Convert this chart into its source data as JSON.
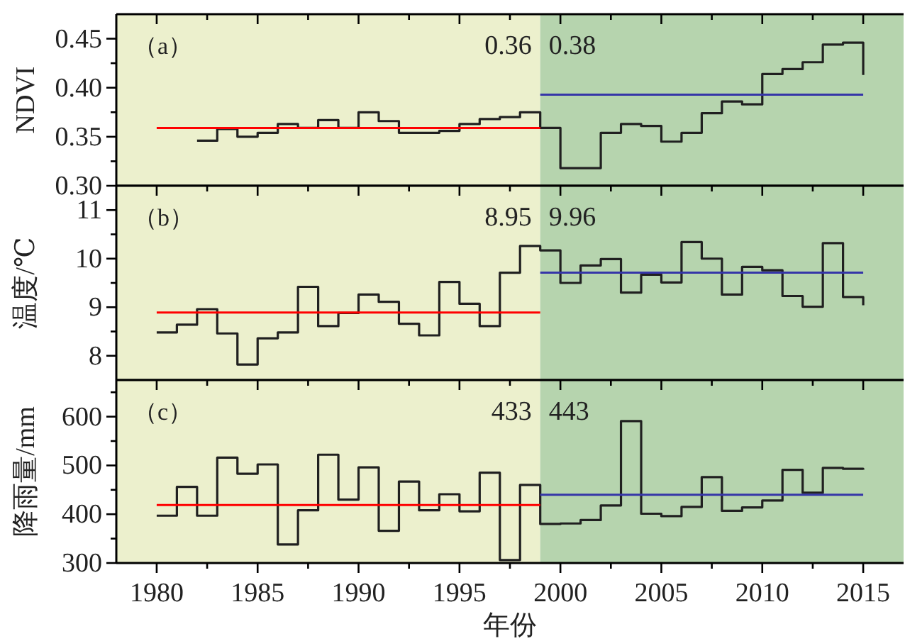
{
  "chart_data": [
    {
      "type": "step",
      "title": "（a）",
      "ylabel": "NDVI",
      "tick_labels": "y",
      "x": [
        1982,
        1983,
        1984,
        1985,
        1986,
        1987,
        1988,
        1989,
        1990,
        1991,
        1992,
        1993,
        1994,
        1995,
        1996,
        1997,
        1998,
        1999,
        2000,
        2001,
        2002,
        2003,
        2004,
        2005,
        2006,
        2007,
        2008,
        2009,
        2010,
        2011,
        2012,
        2013,
        2014,
        2015
      ],
      "series": [
        {
          "color": "#202020",
          "values": [
            0.346,
            0.358,
            0.35,
            0.354,
            0.363,
            0.359,
            0.367,
            0.359,
            0.375,
            0.366,
            0.354,
            0.354,
            0.356,
            0.363,
            0.368,
            0.37,
            0.375,
            0.359,
            0.318,
            0.318,
            0.354,
            0.363,
            0.361,
            0.345,
            0.354,
            0.374,
            0.386,
            0.383,
            0.414,
            0.419,
            0.426,
            0.444,
            0.446,
            0.413
          ]
        },
        {
          "type": "line",
          "color": "#ff0000",
          "x": [
            1980,
            1999
          ],
          "values": [
            0.359,
            0.359
          ]
        },
        {
          "type": "line",
          "color": "#3535a8",
          "x": [
            1999,
            2015
          ],
          "values": [
            0.393,
            0.393
          ]
        }
      ],
      "bands": [
        {
          "axis": "x",
          "from": 1978,
          "to": 1999,
          "color": "#ecf0cd"
        },
        {
          "axis": "x",
          "from": 1999,
          "to": 2017,
          "color": "#b6d4ae"
        }
      ],
      "annotations": [
        "0.36",
        "0.38"
      ],
      "xlim": [
        1978,
        2017
      ],
      "xticks": [
        1980,
        {
          "value": 1982.5,
          "label": null
        },
        1985,
        {
          "value": 1987.5,
          "label": null
        },
        1990,
        {
          "value": 1992.5,
          "label": null
        },
        1995,
        {
          "value": 1997.5,
          "label": null
        },
        2000,
        {
          "value": 2002.5,
          "label": null
        },
        2005,
        {
          "value": 2007.5,
          "label": null
        },
        2010,
        {
          "value": 2012.5,
          "label": null
        },
        2015
      ],
      "ylim": [
        0.3,
        0.475
      ],
      "yticks": [
        {
          "value": 0.3,
          "label": "0.30"
        },
        {
          "value": 0.325,
          "label": null
        },
        0.35,
        {
          "value": 0.375,
          "label": null
        },
        {
          "value": 0.4,
          "label": "0.40"
        },
        {
          "value": 0.425,
          "label": null
        },
        0.45
      ]
    },
    {
      "type": "step",
      "title": "（b）",
      "ylabel": "温度/℃",
      "tick_labels": "y",
      "x": [
        1980,
        1981,
        1982,
        1983,
        1984,
        1985,
        1986,
        1987,
        1988,
        1989,
        1990,
        1991,
        1992,
        1993,
        1994,
        1995,
        1996,
        1997,
        1998,
        1999,
        2000,
        2001,
        2002,
        2003,
        2004,
        2005,
        2006,
        2007,
        2008,
        2009,
        2010,
        2011,
        2012,
        2013,
        2014,
        2015
      ],
      "series": [
        {
          "color": "#202020",
          "values": [
            8.48,
            8.64,
            8.96,
            8.46,
            7.82,
            8.36,
            8.48,
            9.42,
            8.61,
            8.88,
            9.26,
            9.11,
            8.66,
            8.42,
            9.52,
            9.07,
            8.61,
            9.71,
            10.26,
            10.17,
            9.5,
            9.86,
            9.99,
            9.3,
            9.67,
            9.51,
            10.34,
            10.0,
            9.26,
            9.83,
            9.76,
            9.23,
            9.01,
            10.32,
            9.21,
            9.04
          ]
        },
        {
          "type": "line",
          "color": "#ff0000",
          "x": [
            1980,
            1999
          ],
          "values": [
            8.89,
            8.89
          ]
        },
        {
          "type": "line",
          "color": "#3535a8",
          "x": [
            1999,
            2015
          ],
          "values": [
            9.71,
            9.71
          ]
        }
      ],
      "bands": [
        {
          "axis": "x",
          "from": 1978,
          "to": 1999,
          "color": "#ecf0cd"
        },
        {
          "axis": "x",
          "from": 1999,
          "to": 2017,
          "color": "#b6d4ae"
        }
      ],
      "annotations": [
        "8.95",
        "9.96"
      ],
      "xlim": [
        1978,
        2017
      ],
      "xticks": [
        1980,
        {
          "value": 1982.5,
          "label": null
        },
        1985,
        {
          "value": 1987.5,
          "label": null
        },
        1990,
        {
          "value": 1992.5,
          "label": null
        },
        1995,
        {
          "value": 1997.5,
          "label": null
        },
        2000,
        {
          "value": 2002.5,
          "label": null
        },
        2005,
        {
          "value": 2007.5,
          "label": null
        },
        2010,
        {
          "value": 2012.5,
          "label": null
        },
        2015
      ],
      "ylim": [
        7.5,
        11.5
      ],
      "yticks": [
        8,
        {
          "value": 8.5,
          "label": null
        },
        9,
        {
          "value": 9.5,
          "label": null
        },
        10,
        {
          "value": 10.5,
          "label": null
        },
        11
      ]
    },
    {
      "type": "step",
      "title": "（c）",
      "ylabel": "降雨量/mm",
      "xlabel": "年份",
      "x": [
        1980,
        1981,
        1982,
        1983,
        1984,
        1985,
        1986,
        1987,
        1988,
        1989,
        1990,
        1991,
        1992,
        1993,
        1994,
        1995,
        1996,
        1997,
        1998,
        1999,
        2000,
        2001,
        2002,
        2003,
        2004,
        2005,
        2006,
        2007,
        2008,
        2009,
        2010,
        2011,
        2012,
        2013,
        2014,
        2015
      ],
      "series": [
        {
          "color": "#202020",
          "values": [
            397,
            456,
            397,
            516,
            483,
            502,
            338,
            408,
            522,
            430,
            496,
            366,
            467,
            408,
            441,
            406,
            485,
            306,
            460,
            380,
            381,
            388,
            418,
            591,
            401,
            396,
            415,
            476,
            407,
            414,
            428,
            491,
            444,
            495,
            493,
            491
          ]
        },
        {
          "type": "line",
          "color": "#ff0000",
          "x": [
            1980,
            1999
          ],
          "values": [
            419,
            419
          ]
        },
        {
          "type": "line",
          "color": "#3535a8",
          "x": [
            1999,
            2015
          ],
          "values": [
            440,
            440
          ]
        }
      ],
      "bands": [
        {
          "axis": "x",
          "from": 1978,
          "to": 1999,
          "color": "#ecf0cd"
        },
        {
          "axis": "x",
          "from": 1999,
          "to": 2017,
          "color": "#b6d4ae"
        }
      ],
      "annotations": [
        "433",
        "443"
      ],
      "xlim": [
        1978,
        2017
      ],
      "xticks": [
        1980,
        {
          "value": 1982.5,
          "label": null
        },
        1985,
        {
          "value": 1987.5,
          "label": null
        },
        1990,
        {
          "value": 1992.5,
          "label": null
        },
        1995,
        {
          "value": 1997.5,
          "label": null
        },
        2000,
        {
          "value": 2002.5,
          "label": null
        },
        2005,
        {
          "value": 2007.5,
          "label": null
        },
        2010,
        {
          "value": 2012.5,
          "label": null
        },
        2015
      ],
      "ylim": [
        300,
        675
      ],
      "yticks": [
        300,
        {
          "value": 350,
          "label": null
        },
        400,
        {
          "value": 450,
          "label": null
        },
        500,
        {
          "value": 550,
          "label": null
        },
        600,
        {
          "value": 650,
          "label": null
        }
      ]
    }
  ]
}
